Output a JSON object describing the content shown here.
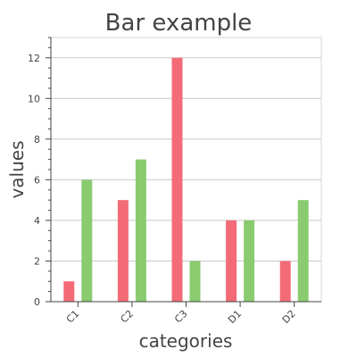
{
  "chart_data": {
    "type": "bar",
    "title": "Bar example",
    "xlabel": "categories",
    "ylabel": "values",
    "categories": [
      "C1",
      "C2",
      "C3",
      "D1",
      "D2"
    ],
    "series": [
      {
        "values": [
          1,
          5,
          12,
          4,
          2
        ],
        "color": "#f36b77"
      },
      {
        "values": [
          6,
          7,
          2,
          4,
          5
        ],
        "color": "#8acb70"
      }
    ],
    "ylim": [
      0,
      13
    ],
    "yticks": [
      0,
      2,
      4,
      6,
      8,
      10,
      12
    ],
    "grid": true,
    "legend": "none"
  }
}
